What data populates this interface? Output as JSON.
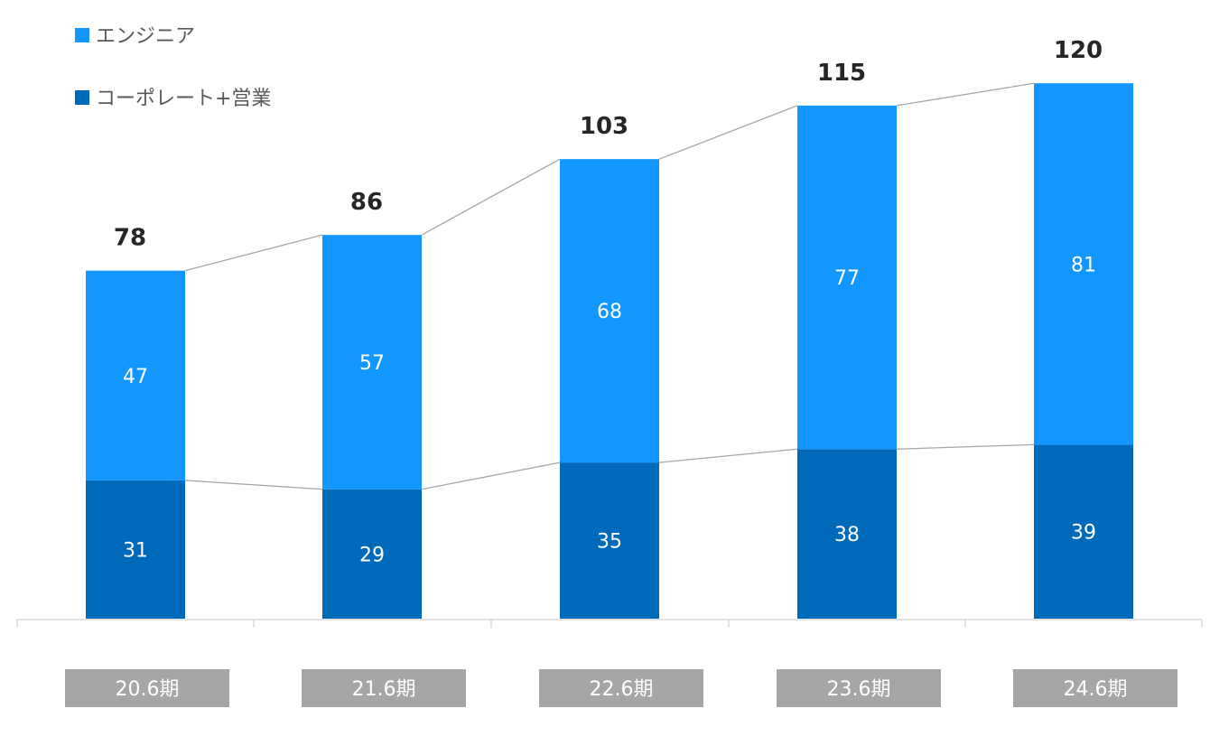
{
  "chart_data": {
    "type": "bar",
    "stacked": true,
    "categories": [
      "20.6期",
      "21.6期",
      "22.6期",
      "23.6期",
      "24.6期"
    ],
    "series": [
      {
        "name": "コーポレート+営業",
        "values": [
          31,
          29,
          35,
          38,
          39
        ],
        "color": "#006ABA"
      },
      {
        "name": "エンジニア",
        "values": [
          47,
          57,
          68,
          77,
          81
        ],
        "color": "#1296FF"
      }
    ],
    "totals": [
      78,
      86,
      103,
      115,
      120
    ],
    "title": "",
    "xlabel": "",
    "ylabel": "",
    "ylim": [
      0,
      126
    ],
    "grid": false,
    "legend_position": "top-left",
    "connector_lines": true,
    "colors": {
      "axis": "#D9D9D9",
      "connector": "#A6A6A6",
      "category_box": "#A6A6A6",
      "total_text": "#262626",
      "legend_text": "#595959"
    }
  }
}
